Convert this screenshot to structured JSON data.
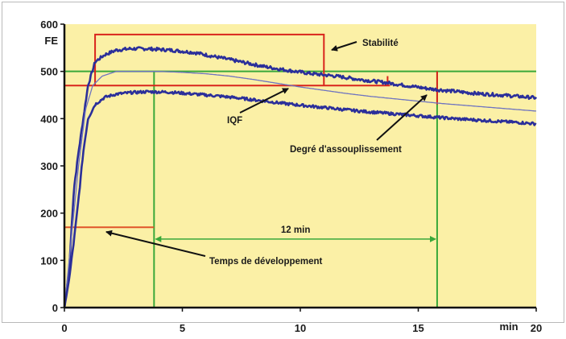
{
  "chart_data": {
    "type": "line",
    "title": "",
    "xlabel": "min",
    "ylabel": "FE",
    "xlim": [
      0,
      20
    ],
    "ylim": [
      0,
      600
    ],
    "x_ticks": [
      0,
      5,
      10,
      15,
      20
    ],
    "y_ticks": [
      0,
      100,
      200,
      300,
      400,
      500,
      600
    ],
    "x_tick_labels": [
      "0",
      "5",
      "10",
      "15",
      "20"
    ],
    "y_tick_labels": [
      "0",
      "100",
      "200",
      "300",
      "400",
      "500",
      "600"
    ],
    "grid": false,
    "colors": {
      "plot_background": "#fbf0a6",
      "series": "#2b2f9a",
      "median": "#6f74c0",
      "stability": "#d9241c",
      "time_markers": "#3aa83a",
      "axes": "#111111"
    },
    "series": [
      {
        "x": [
          0,
          0.2,
          0.4,
          0.6,
          0.8,
          1.0,
          1.3,
          1.7,
          2.2,
          2.8,
          3.5,
          4.5,
          5.5,
          6.5,
          7.5,
          8.5,
          9.5,
          10.5,
          11.5,
          12.5,
          13.5,
          14.5,
          15.5,
          16.5,
          17.5,
          18.5,
          19.5,
          20
        ],
        "values": [
          0,
          80,
          250,
          330,
          400,
          470,
          520,
          535,
          545,
          548,
          548,
          545,
          540,
          530,
          520,
          510,
          502,
          495,
          490,
          483,
          477,
          470,
          463,
          458,
          453,
          450,
          446,
          444
        ]
      },
      {
        "x": [
          0,
          0.3,
          0.6,
          0.9,
          1.2,
          1.6,
          2.2,
          3.0,
          4.0,
          5.0,
          6.0,
          7.0,
          8.0,
          9.0,
          10.0,
          11.0,
          12.0,
          13.0,
          14.0,
          15.0,
          16.0,
          17.0,
          18.0,
          19.0,
          20
        ],
        "values": [
          0,
          150,
          300,
          420,
          470,
          490,
          500,
          500,
          500,
          498,
          495,
          490,
          483,
          475,
          467,
          460,
          453,
          447,
          442,
          437,
          432,
          428,
          424,
          420,
          416
        ]
      },
      {
        "x": [
          0,
          0.2,
          0.4,
          0.6,
          0.8,
          1.0,
          1.3,
          1.7,
          2.2,
          2.8,
          3.5,
          4.5,
          5.5,
          6.5,
          7.5,
          8.5,
          9.5,
          10.5,
          11.5,
          12.5,
          13.5,
          14.5,
          15.5,
          16.5,
          17.5,
          18.5,
          19.5,
          20
        ],
        "values": [
          0,
          60,
          140,
          230,
          330,
          400,
          430,
          445,
          452,
          455,
          457,
          456,
          452,
          448,
          443,
          437,
          431,
          426,
          421,
          416,
          412,
          408,
          404,
          400,
          397,
          394,
          391,
          389
        ]
      }
    ],
    "reference_lines": {
      "consistency_500": {
        "y": 500,
        "x_range": [
          0,
          20
        ]
      },
      "stability_level": {
        "y": 470,
        "x_range": [
          0,
          13.8
        ]
      },
      "development_level": {
        "y": 170,
        "x_range": [
          0,
          3.8
        ]
      },
      "development_time": {
        "x": 3.8
      },
      "degree_of_softening_time": {
        "x": 15.8
      },
      "stability_box": {
        "x_range": [
          1.3,
          11.0
        ],
        "y_range": [
          470,
          578
        ]
      },
      "stability_end_tick": {
        "x": 13.7,
        "y_range": [
          470,
          490
        ]
      },
      "softening_tick": {
        "x": 15.8,
        "y_range": [
          430,
          500
        ]
      },
      "interval": {
        "x_range": [
          3.8,
          15.8
        ],
        "y": 145
      }
    },
    "annotations": {
      "stabilite": "Stabilité",
      "iqf": "IQF",
      "degre": "Degré d'assouplissement",
      "temps": "Temps de développement",
      "interval_label": "12 min"
    }
  }
}
